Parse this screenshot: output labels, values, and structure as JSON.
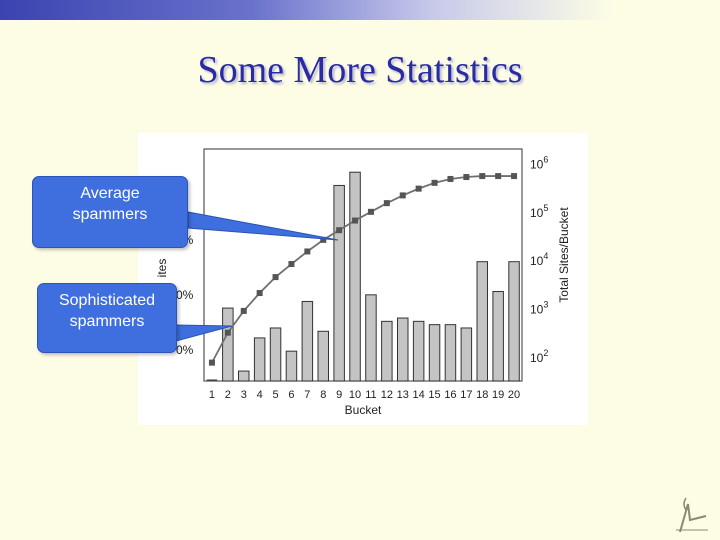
{
  "slide": {
    "title": "Some More Statistics"
  },
  "callouts": {
    "average": [
      "Average",
      "spammers"
    ],
    "sophisticated": [
      "Sophisticated",
      "spammers"
    ]
  },
  "colors": {
    "title": "#2a2aa8",
    "callout_fill": "#3f6fde",
    "bar_fill": "#c4c4c4",
    "line": "#707070"
  },
  "chart_data": {
    "type": "bar",
    "xlabel": "Bucket",
    "left_ylabel_partial": "ites",
    "right_ylabel": "Total Sites/Bucket",
    "categories": [
      "1",
      "2",
      "3",
      "4",
      "5",
      "6",
      "7",
      "8",
      "9",
      "10",
      "11",
      "12",
      "13",
      "14",
      "15",
      "16",
      "17",
      "18",
      "19",
      "20"
    ],
    "left_ticks_partial": [
      "0%",
      "0%",
      "0%"
    ],
    "bar_series": {
      "values": [
        0,
        22,
        3,
        13,
        16,
        9,
        24,
        15,
        59,
        63,
        26,
        18,
        19,
        18,
        17,
        17,
        16,
        36,
        27,
        36
      ],
      "ylim": [
        0,
        70
      ]
    },
    "line_series": {
      "log10_values": [
        1.88,
        2.5,
        2.95,
        3.32,
        3.65,
        3.92,
        4.18,
        4.42,
        4.62,
        4.82,
        5.0,
        5.18,
        5.34,
        5.48,
        5.6,
        5.68,
        5.72,
        5.74,
        5.74,
        5.74
      ],
      "right_ticks": [
        {
          "base": "10",
          "exp": "2",
          "value": 2
        },
        {
          "base": "10",
          "exp": "3",
          "value": 3
        },
        {
          "base": "10",
          "exp": "4",
          "value": 4
        },
        {
          "base": "10",
          "exp": "5",
          "value": 5
        },
        {
          "base": "10",
          "exp": "6",
          "value": 6
        }
      ],
      "scale": "log"
    }
  }
}
